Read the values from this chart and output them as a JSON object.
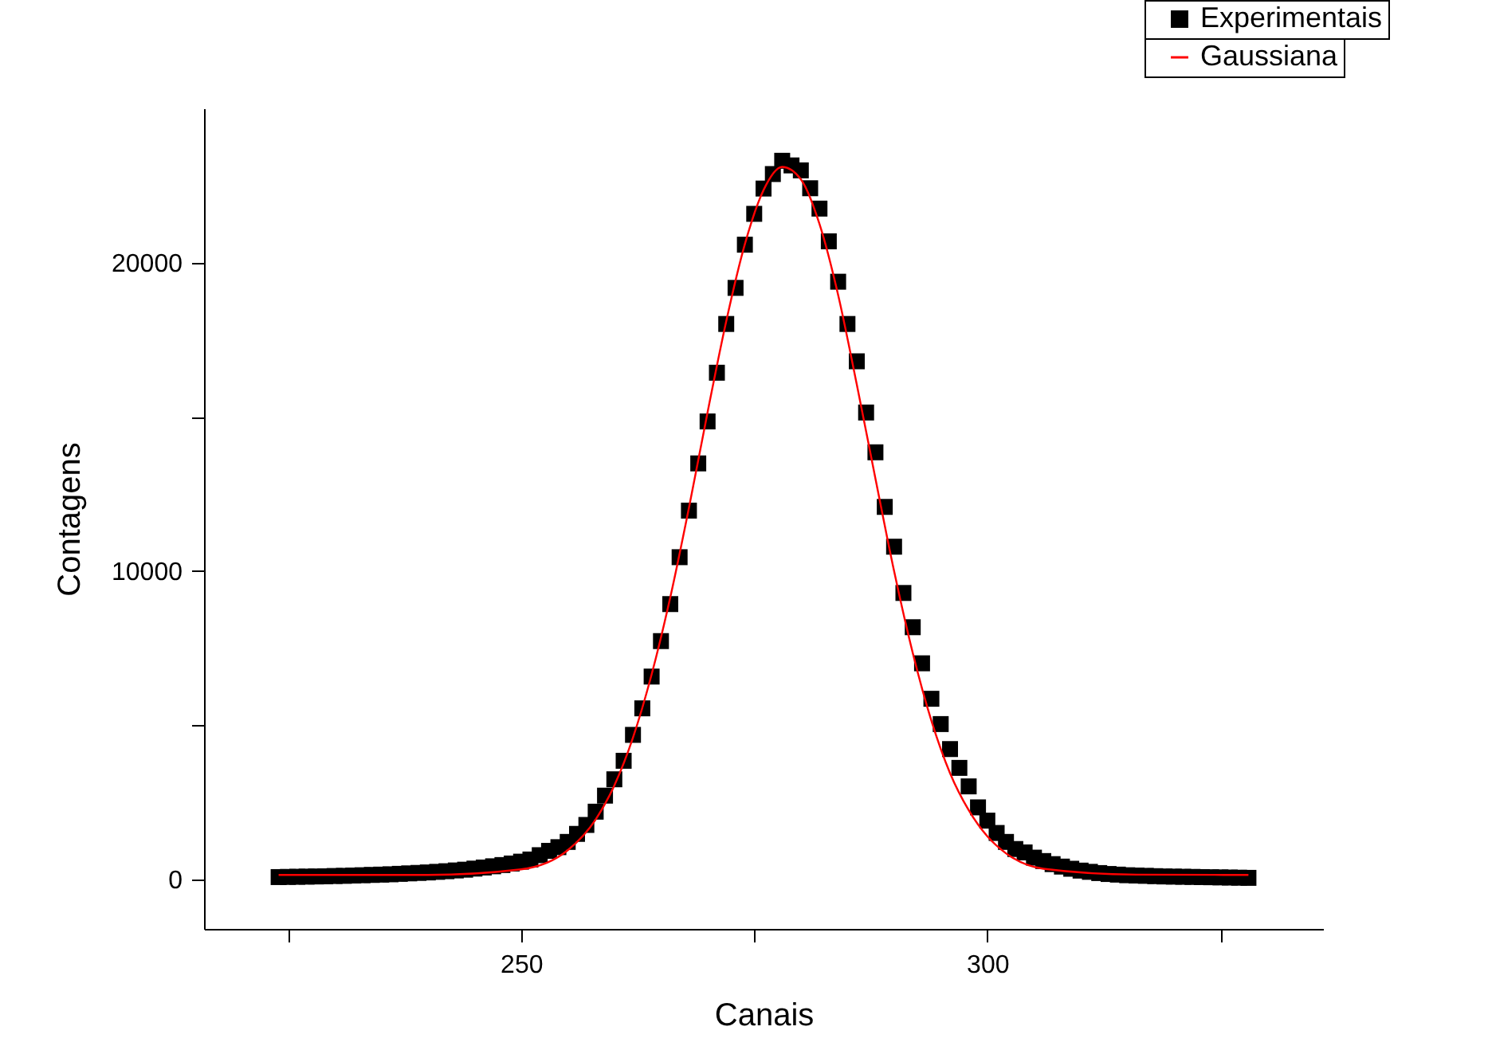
{
  "chart_data": {
    "type": "scatter",
    "xlabel": "Canais",
    "ylabel": "Contagens",
    "x": [
      224,
      225,
      226,
      227,
      228,
      229,
      230,
      231,
      232,
      233,
      234,
      235,
      236,
      237,
      238,
      239,
      240,
      241,
      242,
      243,
      244,
      245,
      246,
      247,
      248,
      249,
      250,
      251,
      252,
      253,
      254,
      255,
      256,
      257,
      258,
      259,
      260,
      261,
      262,
      263,
      264,
      265,
      266,
      267,
      268,
      269,
      270,
      271,
      272,
      273,
      274,
      275,
      276,
      277,
      278,
      279,
      280,
      281,
      282,
      283,
      284,
      285,
      286,
      287,
      288,
      289,
      290,
      291,
      292,
      293,
      294,
      295,
      296,
      297,
      298,
      299,
      300,
      301,
      302,
      303,
      304,
      305,
      306,
      307,
      308,
      309,
      310,
      311,
      312,
      313,
      314,
      315,
      316,
      317,
      318,
      319,
      320,
      321,
      322,
      323,
      324,
      325,
      326,
      327,
      328
    ],
    "series": [
      {
        "name": "Experimentais",
        "color": "#000000",
        "marker": "square",
        "values": [
          80,
          85,
          90,
          95,
          100,
          105,
          115,
          120,
          130,
          140,
          150,
          160,
          170,
          185,
          200,
          215,
          230,
          250,
          270,
          295,
          320,
          355,
          390,
          430,
          470,
          520,
          580,
          650,
          790,
          930,
          1050,
          1220,
          1480,
          1770,
          2200,
          2720,
          3250,
          3850,
          4690,
          5550,
          6580,
          7730,
          8930,
          10450,
          11960,
          13490,
          14850,
          16430,
          18010,
          19180,
          20580,
          21580,
          22400,
          22870,
          23300,
          23150,
          22990,
          22410,
          21750,
          20690,
          19380,
          18010,
          16800,
          15140,
          13850,
          12080,
          10790,
          9290,
          8180,
          7010,
          5860,
          5040,
          4230,
          3620,
          3020,
          2340,
          1910,
          1510,
          1220,
          990,
          880,
          710,
          600,
          500,
          420,
          350,
          290,
          250,
          210,
          180,
          160,
          140,
          130,
          120,
          110,
          100,
          95,
          90,
          85,
          80,
          75,
          70,
          65,
          60,
          55
        ]
      },
      {
        "name": "Gaussiana",
        "type": "line",
        "color": "#ff0000",
        "marker": "none",
        "line_style": "solid",
        "x": [
          224,
          240,
          250,
          255,
          258,
          260,
          262,
          264,
          266,
          268,
          270,
          272,
          274,
          276,
          278,
          280,
          282,
          284,
          286,
          288,
          290,
          292,
          294,
          296,
          298,
          300,
          302,
          306,
          316,
          328
        ],
        "values": [
          150,
          150,
          330,
          950,
          1950,
          3050,
          4600,
          6650,
          9150,
          12050,
          15150,
          18100,
          20600,
          22350,
          23100,
          22700,
          21250,
          18950,
          16050,
          13000,
          10000,
          7350,
          5150,
          3450,
          2250,
          1400,
          850,
          350,
          160,
          150
        ]
      }
    ],
    "xlim": [
      216,
      336
    ],
    "xticks": [
      {
        "value": 225,
        "label": null
      },
      250,
      {
        "value": 275,
        "label": null
      },
      300,
      {
        "value": 325,
        "label": null
      }
    ],
    "ylim": [
      -1600,
      25000
    ],
    "yticks": [
      0,
      {
        "value": 5000,
        "label": null
      },
      10000,
      {
        "value": 15000,
        "label": null
      },
      20000
    ],
    "grid": false,
    "legend": "top right"
  }
}
